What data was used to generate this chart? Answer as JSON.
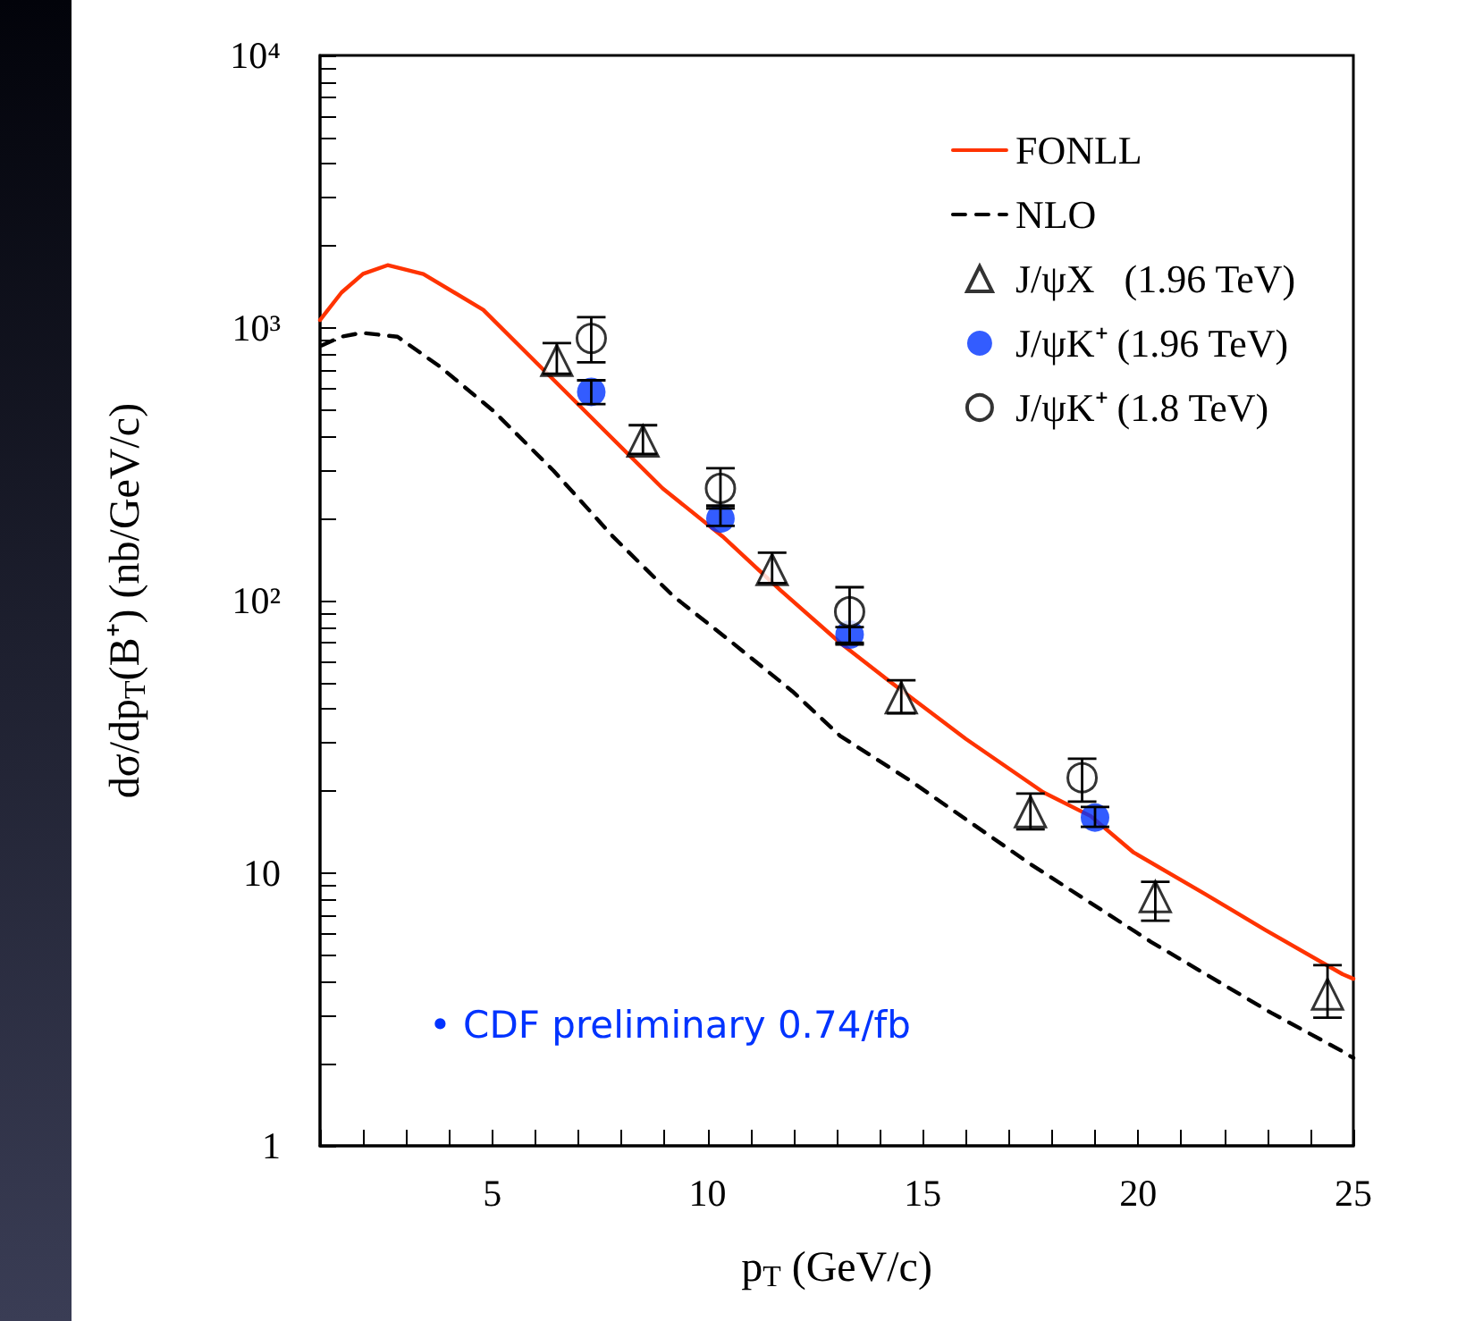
{
  "chart_data": {
    "type": "scatter",
    "xlabel": "p$_{T}$ (GeV/c)",
    "ylabel": "dσ/dp$_{T}$(B⁺) (nb/GeV/c)",
    "log": "y",
    "xlim": [
      1,
      25
    ],
    "xticks": [
      5,
      10,
      15,
      20,
      25
    ],
    "ylim": [
      1,
      10000
    ],
    "yticks": [
      1,
      10,
      {
        "value": 100,
        "label": "10²"
      },
      {
        "value": 1000,
        "label": "10³"
      },
      {
        "value": 10000,
        "label": "10⁴"
      }
    ],
    "grid": false,
    "legend": "top right",
    "annotations": [
      "• CDF preliminary 0.74/fb"
    ],
    "series": [
      {
        "name": "FONLL",
        "type": "line",
        "color": "#ff3300",
        "line_style": "solid",
        "marker": "none",
        "x": [
          1,
          1.5,
          2,
          2.57,
          3.4,
          4.79,
          6.18,
          7.57,
          8.96,
          10.35,
          11.7,
          13.08,
          14.2,
          16.0,
          17.8,
          18.9,
          19.9,
          21.55,
          22.95,
          24.75,
          25
        ],
        "values": [
          1070,
          1350,
          1580,
          1700,
          1578,
          1166,
          705,
          426,
          258,
          172,
          109,
          70,
          51,
          31.1,
          19.8,
          16.2,
          11.9,
          8.4,
          6.2,
          4.26,
          4.1
        ]
      },
      {
        "name": "NLO",
        "type": "line",
        "color": "#000000",
        "line_style": "dashed",
        "marker": "none",
        "x": [
          1.04,
          1.5,
          1.97,
          2.8,
          3.78,
          5.03,
          6.42,
          7.8,
          9.2,
          10.58,
          11.97,
          13.08,
          14.7,
          17.5,
          20.3,
          23.1,
          24.75,
          25
        ],
        "values": [
          863,
          930,
          960,
          929,
          723,
          496,
          300,
          172,
          104,
          70,
          46.5,
          31.9,
          21.9,
          10.8,
          5.6,
          3.07,
          2.22,
          2.1
        ]
      },
      {
        "name": "J/ψX   (1.96 TeV)",
        "color": "#000000",
        "marker": "triangle",
        "x": [
          6.5,
          8.5,
          11.5,
          14.5,
          17.5,
          20.4,
          24.4
        ],
        "values": [
          760,
          385,
          130,
          44,
          16.8,
          8.2,
          3.6
        ],
        "errors": [
          [
            680,
            880
          ],
          [
            345,
            440
          ],
          [
            116,
            150
          ],
          [
            38.6,
            51
          ],
          [
            14.5,
            19.6
          ],
          [
            6.7,
            9.3
          ],
          [
            2.95,
            4.6
          ]
        ]
      },
      {
        "name": "J/ψK⁺ (1.96 TeV)",
        "color": "#0033ff",
        "marker": "circle",
        "x": [
          7.3,
          10.3,
          13.3,
          19.0
        ],
        "values": [
          583,
          200,
          75,
          16
        ],
        "errors": [
          [
            526,
            643
          ],
          [
            188,
            223
          ],
          [
            69,
            80
          ],
          [
            14.8,
            17.5
          ]
        ]
      },
      {
        "name": "J/ψK⁺ (1.8 TeV)",
        "color": "#000000",
        "marker": "circle",
        "x": [
          7.3,
          10.3,
          13.3,
          18.7
        ],
        "values": [
          916,
          258,
          91,
          22.4
        ],
        "errors": [
          [
            748,
            1096
          ],
          [
            218,
            306
          ],
          [
            70,
            112
          ],
          [
            18.3,
            26.3
          ]
        ]
      }
    ]
  }
}
